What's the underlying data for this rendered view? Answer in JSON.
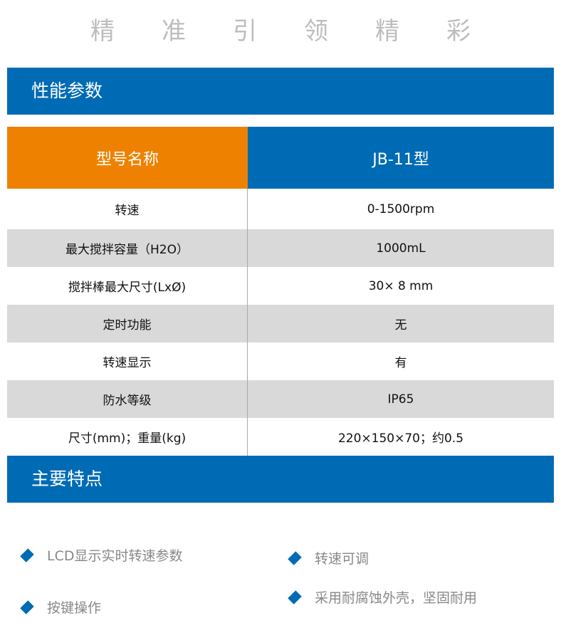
{
  "slogan": [
    "精",
    "准",
    "引",
    "领",
    "精",
    "彩"
  ],
  "section1": "性能参数",
  "header": {
    "label": "型号名称",
    "value": "JB-11型",
    "label_color": "#ee8200",
    "value_color": "#006bb5"
  },
  "rows": [
    {
      "label": "转速",
      "value": "0-1500rpm"
    },
    {
      "label": "最大搅拌容量（H2O）",
      "value": "1000mL"
    },
    {
      "label": "搅拌棒最大尺寸(LxØ)",
      "value": "30× 8 mm"
    },
    {
      "label": "定时功能",
      "value": "无"
    },
    {
      "label": "转速显示",
      "value": "有"
    },
    {
      "label": "防水等级",
      "value": "IP65"
    },
    {
      "label": "尺寸(mm)；重量(kg)",
      "value": "220×150×70；约0.5"
    }
  ],
  "section2": "主要特点",
  "features": [
    "LCD显示实时转速参数",
    "转速可调",
    "按键操作",
    "采用耐腐蚀外壳，坚固耐用"
  ]
}
